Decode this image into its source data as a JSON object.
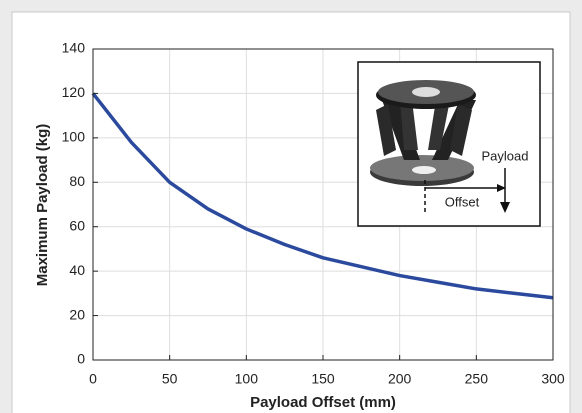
{
  "chart_data": {
    "type": "line",
    "xlabel": "Payload Offset (mm)",
    "ylabel": "Maximum Payload (kg)",
    "x": [
      0,
      25,
      50,
      75,
      100,
      125,
      150,
      175,
      200,
      225,
      250,
      275,
      300
    ],
    "series": [
      {
        "name": "Maximum Payload",
        "color": "#2b4a9e",
        "values": [
          120,
          98,
          80,
          68,
          59,
          52,
          46,
          42,
          38,
          35,
          32,
          30,
          28
        ]
      }
    ],
    "xlim": [
      0,
      300
    ],
    "ylim": [
      0,
      140
    ],
    "xticks": [
      0,
      50,
      100,
      150,
      200,
      250,
      300
    ],
    "yticks": [
      0,
      20,
      40,
      60,
      80,
      100,
      120,
      140
    ],
    "grid": true,
    "inset_labels": {
      "payload": "Payload",
      "offset": "Offset"
    }
  }
}
